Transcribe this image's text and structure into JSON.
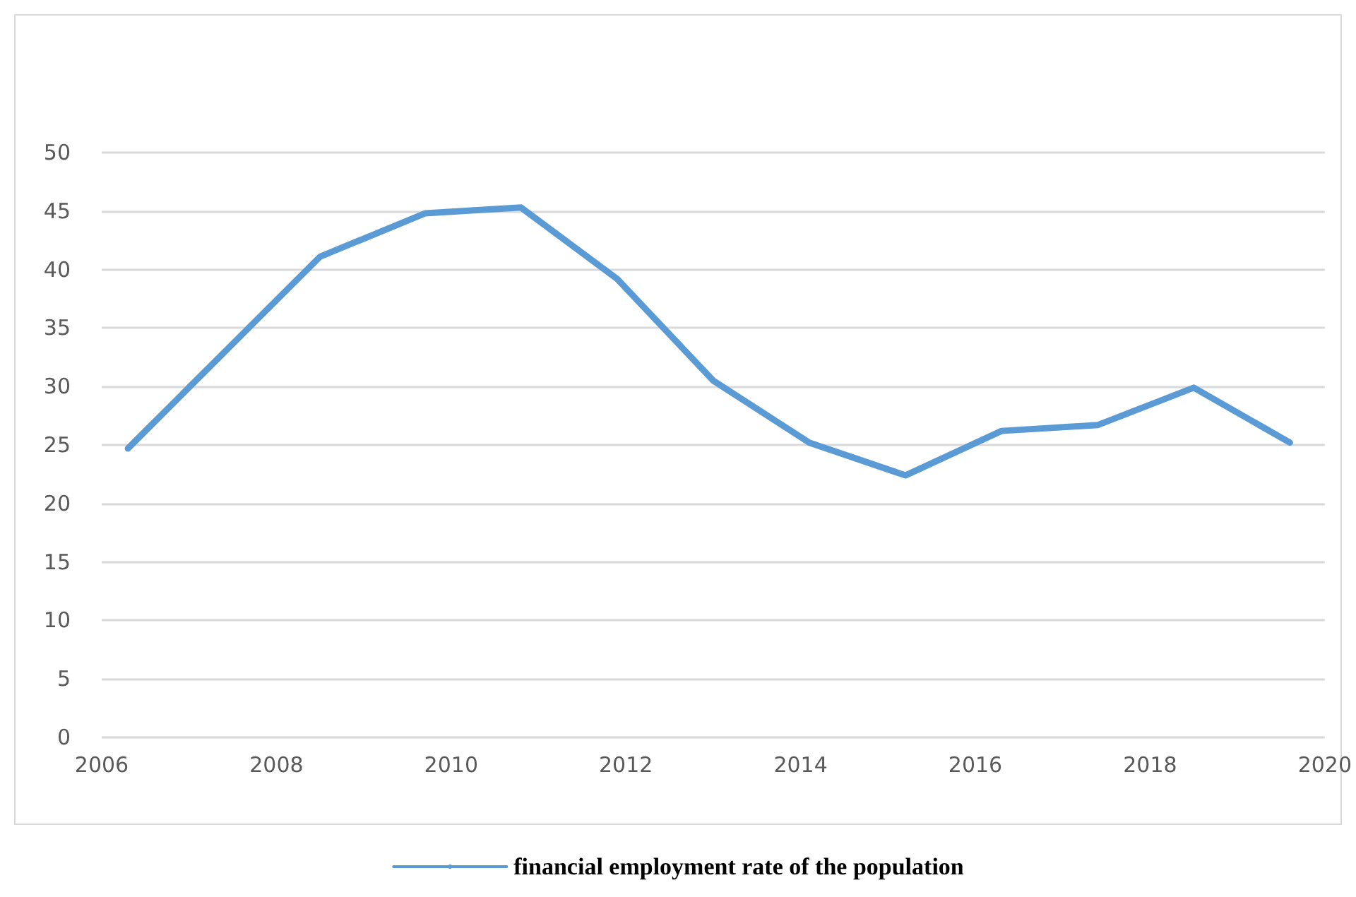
{
  "chart_data": {
    "type": "line",
    "x": [
      2006.3,
      2007.4,
      2008.5,
      2009.7,
      2010.8,
      2011.9,
      2013.0,
      2014.1,
      2015.2,
      2016.3,
      2017.4,
      2018.5,
      2019.6
    ],
    "series": [
      {
        "name": "financial employment rate of the population",
        "color": "#5b9bd5",
        "values": [
          24.7,
          32.9,
          41.1,
          44.8,
          45.3,
          39.2,
          30.5,
          25.2,
          22.4,
          26.2,
          26.7,
          29.9,
          25.2
        ]
      }
    ],
    "xlim": [
      2006,
      2020
    ],
    "xticks": [
      2006,
      2008,
      2010,
      2012,
      2014,
      2016,
      2018,
      2020
    ],
    "ylim": [
      0,
      50
    ],
    "yticks": [
      0,
      5,
      10,
      15,
      20,
      25,
      30,
      35,
      40,
      45,
      50
    ],
    "grid": "y",
    "legend": "bottom",
    "marker": "none",
    "line_style": "solid"
  }
}
